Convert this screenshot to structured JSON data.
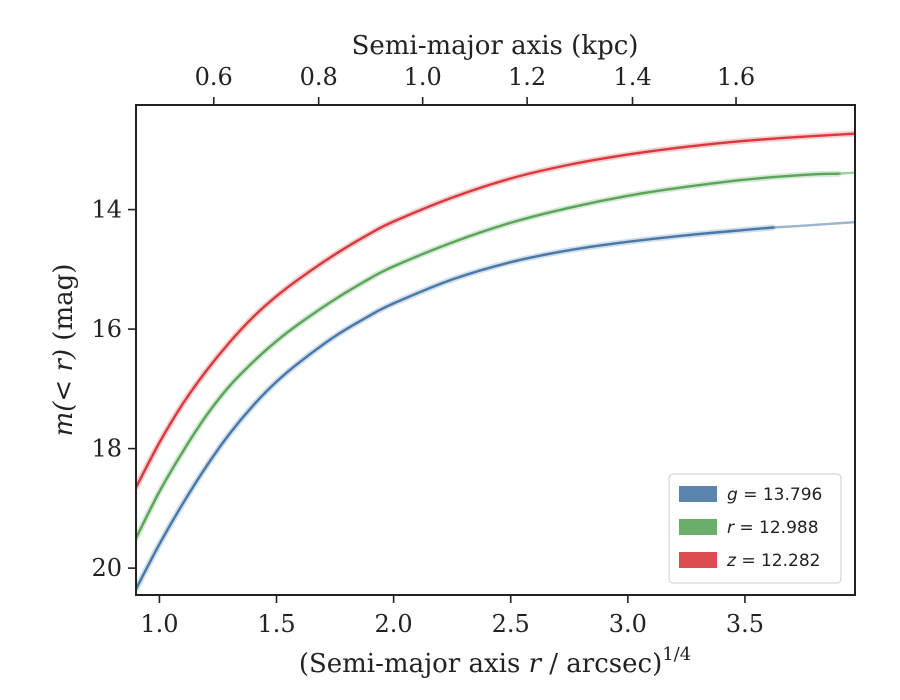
{
  "chart_data": {
    "type": "line",
    "xlabel": "(Semi-major axis r / arcsec)^{1/4}",
    "xlabel_parts": {
      "pre": "(Semi-major axis ",
      "var": "r",
      "post": " / arcsec)",
      "sup": "1/4"
    },
    "ylabel": "m(<r) (mag)",
    "ylabel_parts": {
      "math": "m(< r)",
      "unit": " (mag)"
    },
    "top_xlabel": "Semi-major axis (kpc)",
    "xlim": [
      0.9,
      3.97
    ],
    "ylim": [
      20.45,
      12.25
    ],
    "y_inverted": true,
    "x_ticks": [
      1.0,
      1.5,
      2.0,
      2.5,
      3.0,
      3.5
    ],
    "x_tick_labels": [
      "1.0",
      "1.5",
      "2.0",
      "2.5",
      "3.0",
      "3.5"
    ],
    "y_ticks": [
      14,
      16,
      18,
      20
    ],
    "y_tick_labels": [
      "14",
      "16",
      "18",
      "20"
    ],
    "top_x_ticks_kpc": [
      0.6,
      0.8,
      1.0,
      1.2,
      1.4,
      1.6
    ],
    "top_x_tick_labels": [
      "0.6",
      "0.8",
      "1.0",
      "1.2",
      "1.4",
      "1.6"
    ],
    "top_x_tick_positions_bottom_units": [
      1.232,
      1.68,
      2.124,
      2.57,
      3.02,
      3.462
    ],
    "grid": false,
    "legend_position": "lower-right",
    "series": [
      {
        "name": "g = 13.796",
        "legend": {
          "var": "g",
          "value": "13.796"
        },
        "color": "#4878a8",
        "x": [
          0.9,
          1.0,
          1.1,
          1.2,
          1.3,
          1.4,
          1.5,
          1.6,
          1.75,
          1.9,
          2.0,
          2.25,
          2.5,
          2.75,
          3.0,
          3.25,
          3.5,
          3.62
        ],
        "y": [
          20.35,
          19.6,
          18.92,
          18.3,
          17.75,
          17.28,
          16.88,
          16.55,
          16.12,
          15.77,
          15.57,
          15.17,
          14.88,
          14.68,
          14.54,
          14.43,
          14.34,
          14.3
        ],
        "faint_x": [
          3.62,
          3.75,
          3.97
        ],
        "faint_y": [
          14.3,
          14.27,
          14.21
        ]
      },
      {
        "name": "r = 12.988",
        "legend": {
          "var": "r",
          "value": "12.988"
        },
        "color": "#5aa55a",
        "x": [
          0.9,
          1.0,
          1.1,
          1.2,
          1.3,
          1.4,
          1.5,
          1.6,
          1.75,
          1.9,
          2.0,
          2.25,
          2.5,
          2.75,
          3.0,
          3.25,
          3.5,
          3.75,
          3.9
        ],
        "y": [
          19.5,
          18.72,
          18.05,
          17.45,
          16.95,
          16.55,
          16.2,
          15.9,
          15.5,
          15.15,
          14.95,
          14.55,
          14.22,
          13.97,
          13.77,
          13.62,
          13.5,
          13.42,
          13.4
        ],
        "faint_x": [
          3.9,
          3.97
        ],
        "faint_y": [
          13.4,
          13.38
        ]
      },
      {
        "name": "z = 12.282",
        "legend": {
          "var": "z",
          "value": "12.282"
        },
        "color": "#d9393d",
        "x": [
          0.9,
          1.0,
          1.1,
          1.2,
          1.3,
          1.4,
          1.5,
          1.6,
          1.75,
          1.9,
          2.0,
          2.25,
          2.5,
          2.75,
          3.0,
          3.25,
          3.5,
          3.75,
          3.97
        ],
        "y": [
          18.65,
          17.9,
          17.25,
          16.7,
          16.22,
          15.8,
          15.45,
          15.15,
          14.75,
          14.4,
          14.2,
          13.8,
          13.48,
          13.25,
          13.08,
          12.95,
          12.85,
          12.78,
          12.73
        ],
        "faint_x": [],
        "faint_y": []
      }
    ]
  }
}
